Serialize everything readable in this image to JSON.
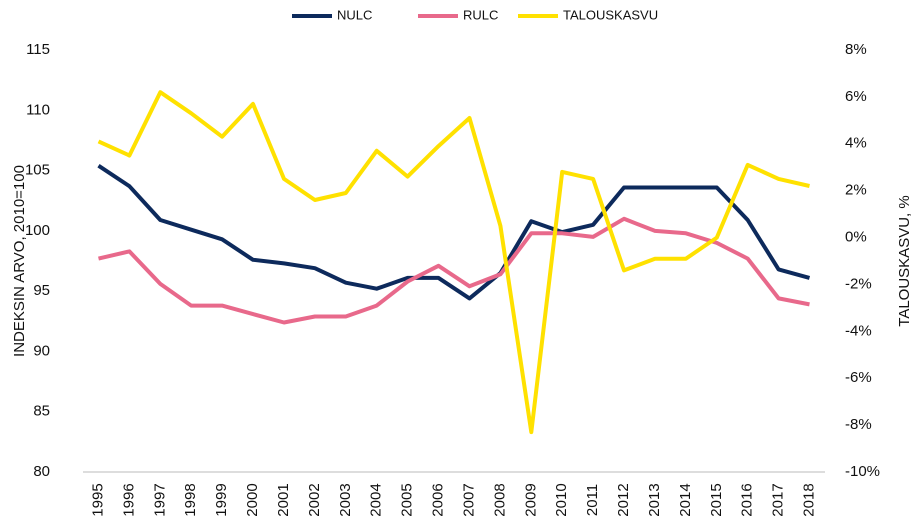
{
  "chart_data": {
    "type": "line",
    "y_label": "INDEKSIN ARVO, 2010=100",
    "y2_label": "TALOUSKASVU, %",
    "categories": [
      "1995",
      "1996",
      "1997",
      "1998",
      "1999",
      "2000",
      "2001",
      "2002",
      "2003",
      "2004",
      "2005",
      "2006",
      "2007",
      "2008",
      "2009",
      "2010",
      "2011",
      "2012",
      "2013",
      "2014",
      "2015",
      "2016",
      "2017",
      "2018"
    ],
    "series": [
      {
        "name": "NULC",
        "color": "#0d2a5c",
        "values": [
          105.4,
          103.7,
          100.9,
          100.1,
          99.3,
          97.6,
          97.3,
          96.9,
          95.7,
          95.2,
          96.1,
          96.1,
          94.4,
          96.5,
          100.8,
          99.9,
          100.5,
          103.6,
          103.6,
          103.6,
          103.6,
          100.9,
          96.8,
          96.1
        ]
      },
      {
        "name": "RULC",
        "color": "#e8698b",
        "values": [
          97.7,
          98.3,
          95.6,
          93.8,
          93.8,
          93.1,
          92.4,
          92.9,
          92.9,
          93.8,
          95.8,
          97.1,
          95.4,
          96.4,
          99.8,
          99.8,
          99.5,
          101.0,
          100.0,
          99.8,
          99.0,
          97.7,
          94.4,
          93.9
        ]
      },
      {
        "name": "TALOUSKASVU",
        "color": "#ffe100",
        "axis": "y2",
        "values": [
          4.1,
          3.5,
          6.2,
          5.3,
          4.3,
          5.7,
          2.5,
          1.6,
          1.9,
          3.7,
          2.6,
          3.9,
          5.1,
          0.5,
          -8.3,
          2.8,
          2.5,
          -1.4,
          -0.9,
          -0.9,
          0.0,
          3.1,
          2.5,
          2.2
        ]
      }
    ],
    "ylim": [
      80,
      115
    ],
    "yticks": [
      80,
      85,
      90,
      95,
      100,
      105,
      110,
      115
    ],
    "y2lim": [
      -10,
      8
    ],
    "y2ticks": [
      {
        "value": -10,
        "label": "-10%"
      },
      {
        "value": -8,
        "label": "-8%"
      },
      {
        "value": -6,
        "label": "-6%"
      },
      {
        "value": -4,
        "label": "-4%"
      },
      {
        "value": -2,
        "label": "-2%"
      },
      {
        "value": 0,
        "label": "0%"
      },
      {
        "value": 2,
        "label": "2%"
      },
      {
        "value": 4,
        "label": "4%"
      },
      {
        "value": 6,
        "label": "6%"
      },
      {
        "value": 8,
        "label": "8%"
      }
    ],
    "grid": false,
    "legend": "top"
  }
}
